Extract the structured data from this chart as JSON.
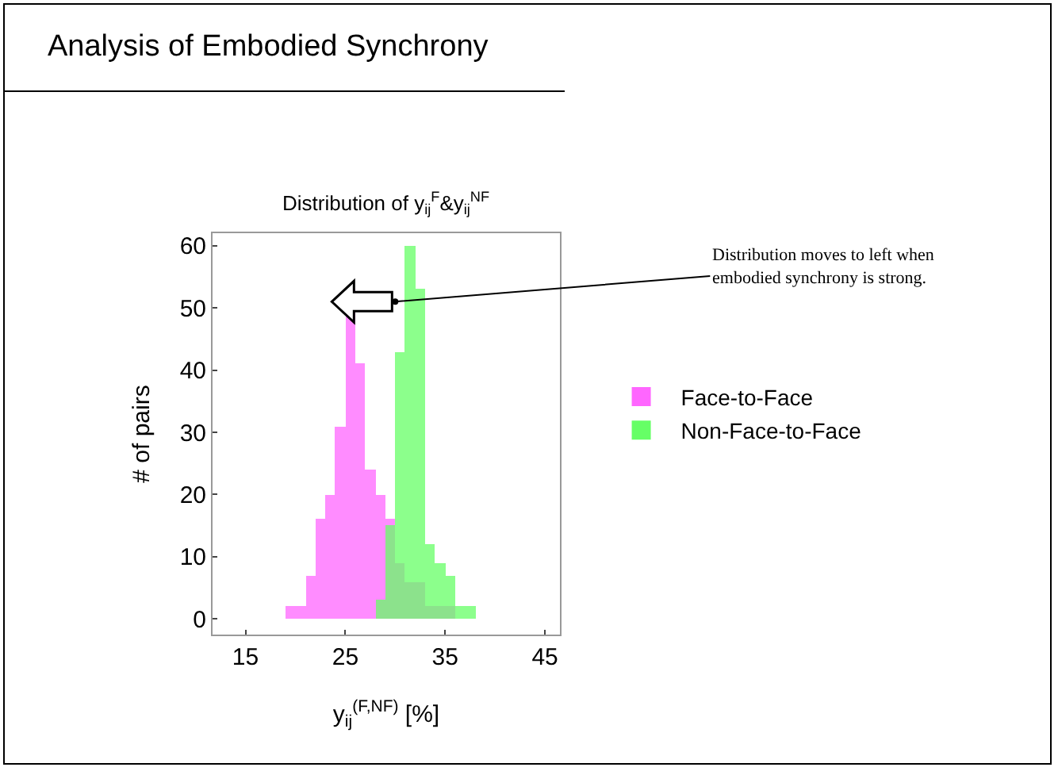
{
  "chart_data": {
    "type": "histogram",
    "title": "Analysis of Embodied Synchrony",
    "subtitle": "Distribution of y$_{ij}$$^{F}$&y$_{ij}$$^{NF}$",
    "xlabel": "y$_{ij}$$^{(F,NF)}$ [%]",
    "ylabel": "# of pairs",
    "bins": [
      19,
      20,
      21,
      22,
      23,
      24,
      25,
      26,
      27,
      28,
      29,
      30,
      31,
      32,
      33,
      34,
      35,
      36,
      37,
      38,
      39
    ],
    "series": [
      {
        "name": "Face-to-Face",
        "color": "#ff66ff",
        "values": [
          2,
          2,
          7,
          16,
          20,
          31,
          53,
          41,
          24,
          20,
          16,
          9,
          6,
          6,
          2,
          2,
          2,
          0,
          0,
          0
        ]
      },
      {
        "name": "Non-Face-to-Face",
        "color": "#66ff66",
        "values": [
          0,
          0,
          0,
          0,
          0,
          0,
          0,
          0,
          0,
          3,
          15,
          43,
          60,
          53,
          12,
          9,
          7,
          2,
          2,
          0
        ]
      }
    ],
    "xlim": [
      11.7,
      46.5
    ],
    "xticks": [
      15,
      25,
      35,
      45
    ],
    "ylim": [
      -2.5,
      62
    ],
    "yticks": [
      0,
      10,
      20,
      30,
      40,
      50,
      60
    ],
    "grid": false,
    "legend": "right",
    "annotations": [
      {
        "text": "Distribution moves to left when embodied synchrony is strong.",
        "x": 30,
        "y": 51
      }
    ]
  }
}
